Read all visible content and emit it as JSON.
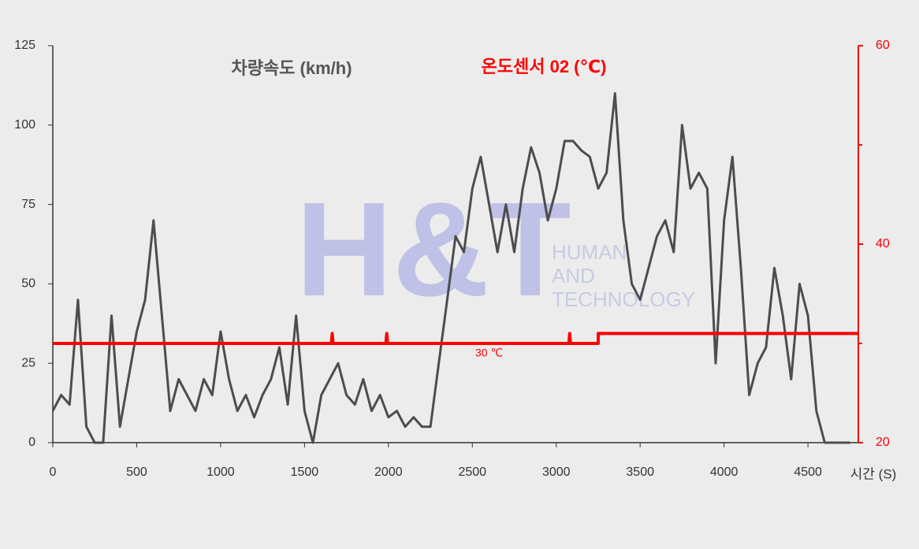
{
  "chart_data": {
    "type": "line",
    "series_label_speed": "차량속도 (km/h)",
    "series_label_temp": "온도센서 02 (℃)",
    "xlabel": "시간 (S)",
    "annotation": {
      "text": "30 ℃",
      "x": 2600,
      "y": 29
    },
    "watermark": {
      "logo": "H&T",
      "lines": [
        "HUMAN",
        "AND",
        "TECHNOLOGY"
      ]
    },
    "xlim": [
      0,
      4800
    ],
    "xticks": [
      0,
      500,
      1000,
      1500,
      2000,
      2500,
      3000,
      3500,
      4000,
      4500
    ],
    "ylim": [
      0,
      125
    ],
    "yticks": [
      0,
      25,
      50,
      75,
      100,
      125
    ],
    "y2lim": [
      20,
      60
    ],
    "y2ticks": [
      20,
      40,
      60
    ],
    "y2minor": [
      30,
      50
    ],
    "series": [
      {
        "name": "차량속도 (km/h)",
        "color": "#4d4d4d",
        "x": [
          0,
          50,
          100,
          150,
          200,
          250,
          300,
          350,
          400,
          450,
          500,
          550,
          600,
          650,
          700,
          750,
          800,
          850,
          900,
          950,
          1000,
          1050,
          1100,
          1150,
          1200,
          1250,
          1300,
          1350,
          1400,
          1450,
          1500,
          1550,
          1600,
          1650,
          1700,
          1750,
          1800,
          1850,
          1900,
          1950,
          2000,
          2050,
          2100,
          2150,
          2200,
          2250,
          2300,
          2350,
          2400,
          2450,
          2500,
          2550,
          2600,
          2650,
          2700,
          2750,
          2800,
          2850,
          2900,
          2950,
          3000,
          3050,
          3100,
          3150,
          3200,
          3250,
          3300,
          3350,
          3400,
          3450,
          3500,
          3550,
          3600,
          3650,
          3700,
          3750,
          3800,
          3850,
          3900,
          3950,
          4000,
          4050,
          4100,
          4150,
          4200,
          4250,
          4300,
          4350,
          4400,
          4450,
          4500,
          4550,
          4600,
          4650,
          4700,
          4750
        ],
        "values": [
          10,
          15,
          12,
          45,
          5,
          0,
          0,
          40,
          5,
          20,
          35,
          45,
          70,
          40,
          10,
          20,
          15,
          10,
          20,
          15,
          35,
          20,
          10,
          15,
          8,
          15,
          20,
          30,
          12,
          40,
          10,
          0,
          15,
          20,
          25,
          15,
          12,
          20,
          10,
          15,
          8,
          10,
          5,
          8,
          5,
          5,
          25,
          45,
          65,
          60,
          80,
          90,
          75,
          60,
          75,
          60,
          80,
          93,
          85,
          70,
          80,
          95,
          95,
          92,
          90,
          80,
          85,
          110,
          70,
          50,
          45,
          55,
          65,
          70,
          60,
          100,
          80,
          85,
          80,
          25,
          70,
          90,
          55,
          15,
          25,
          30,
          55,
          40,
          20,
          50,
          40,
          10,
          0,
          0,
          0,
          0
        ]
      },
      {
        "name": "온도센서 02 (℃)",
        "color": "#ff0000",
        "axis": "y2",
        "x": [
          0,
          1660,
          1665,
          1670,
          1985,
          1990,
          1995,
          3075,
          3080,
          3085,
          3250,
          3250,
          4800
        ],
        "values": [
          30,
          30,
          31,
          30,
          30,
          31,
          30,
          30,
          31,
          30,
          30,
          31,
          31
        ]
      }
    ]
  }
}
